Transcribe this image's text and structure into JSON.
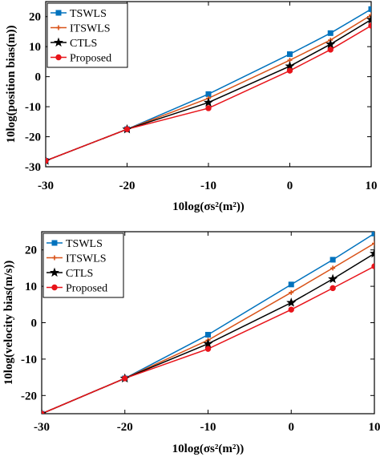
{
  "chart_data": [
    {
      "type": "line",
      "title": "",
      "xlabel": "10log(σs²(m²))",
      "ylabel": "10log(position bias(m))",
      "xlim": [
        -30,
        10
      ],
      "ylim": [
        -30,
        25
      ],
      "xticks": [
        -30,
        -20,
        -10,
        0,
        10
      ],
      "yticks": [
        -30,
        -20,
        -10,
        0,
        10,
        20
      ],
      "x": [
        -30,
        -20,
        -10,
        0,
        5,
        10
      ],
      "legend_position": "top-left",
      "series": [
        {
          "name": "TSWLS",
          "color": "#0072BD",
          "marker": "square",
          "values": [
            -28,
            -17.5,
            -5.8,
            7.5,
            14.5,
            22.5
          ]
        },
        {
          "name": "ITSWLS",
          "color": "#D95319",
          "marker": "plus",
          "values": [
            -28,
            -17.5,
            -7.2,
            5.5,
            12.2,
            20.5
          ]
        },
        {
          "name": "CTLS",
          "color": "#000000",
          "marker": "star",
          "values": [
            -28,
            -17.5,
            -8.6,
            3.5,
            10.8,
            19
          ]
        },
        {
          "name": "Proposed",
          "color": "#E8141A",
          "marker": "circle",
          "values": [
            -28,
            -17.5,
            -10.5,
            2,
            9,
            17
          ]
        }
      ]
    },
    {
      "type": "line",
      "title": "",
      "xlabel": "10log(σs²(m²))",
      "ylabel": "10log(velocity bias(m/s))",
      "xlim": [
        -30,
        10
      ],
      "ylim": [
        -25,
        25
      ],
      "xticks": [
        -30,
        -20,
        -10,
        0,
        10
      ],
      "yticks": [
        -20,
        -10,
        0,
        10,
        20
      ],
      "x": [
        -30,
        -20,
        -10,
        0,
        5,
        10
      ],
      "legend_position": "top-left",
      "series": [
        {
          "name": "TSWLS",
          "color": "#0072BD",
          "marker": "square",
          "values": [
            -25,
            -15.3,
            -3.3,
            10.5,
            17.3,
            24.5
          ]
        },
        {
          "name": "ITSWLS",
          "color": "#D95319",
          "marker": "plus",
          "values": [
            -25,
            -15.3,
            -4.8,
            8.3,
            15,
            21.8
          ]
        },
        {
          "name": "CTLS",
          "color": "#000000",
          "marker": "star",
          "values": [
            -25,
            -15.3,
            -5.8,
            5.5,
            12,
            19
          ]
        },
        {
          "name": "Proposed",
          "color": "#E8141A",
          "marker": "circle",
          "values": [
            -25,
            -15.3,
            -7.2,
            3.6,
            9.5,
            15.5
          ]
        }
      ]
    }
  ]
}
